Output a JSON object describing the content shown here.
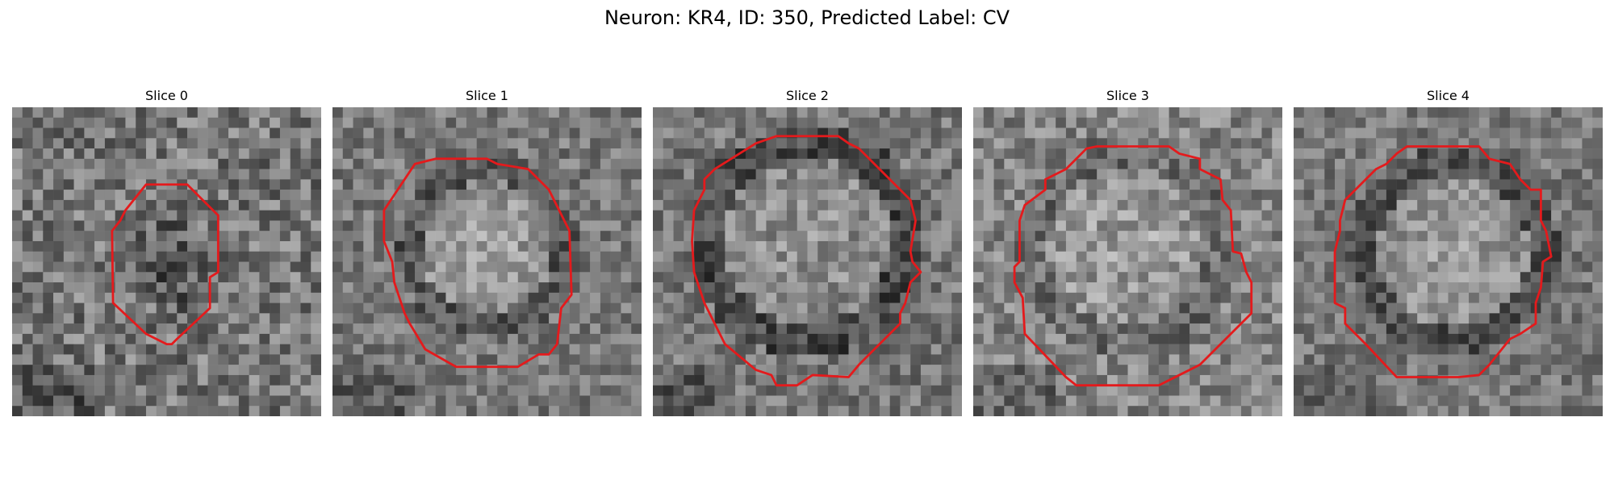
{
  "figure": {
    "title": "Neuron: KR4, ID: 350, Predicted Label: CV",
    "contour_color": "#e41a1c",
    "colormap": "gray"
  },
  "panels": [
    {
      "label": "Slice 0"
    },
    {
      "label": "Slice 1"
    },
    {
      "label": "Slice 2"
    },
    {
      "label": "Slice 3"
    },
    {
      "label": "Slice 4"
    }
  ]
}
